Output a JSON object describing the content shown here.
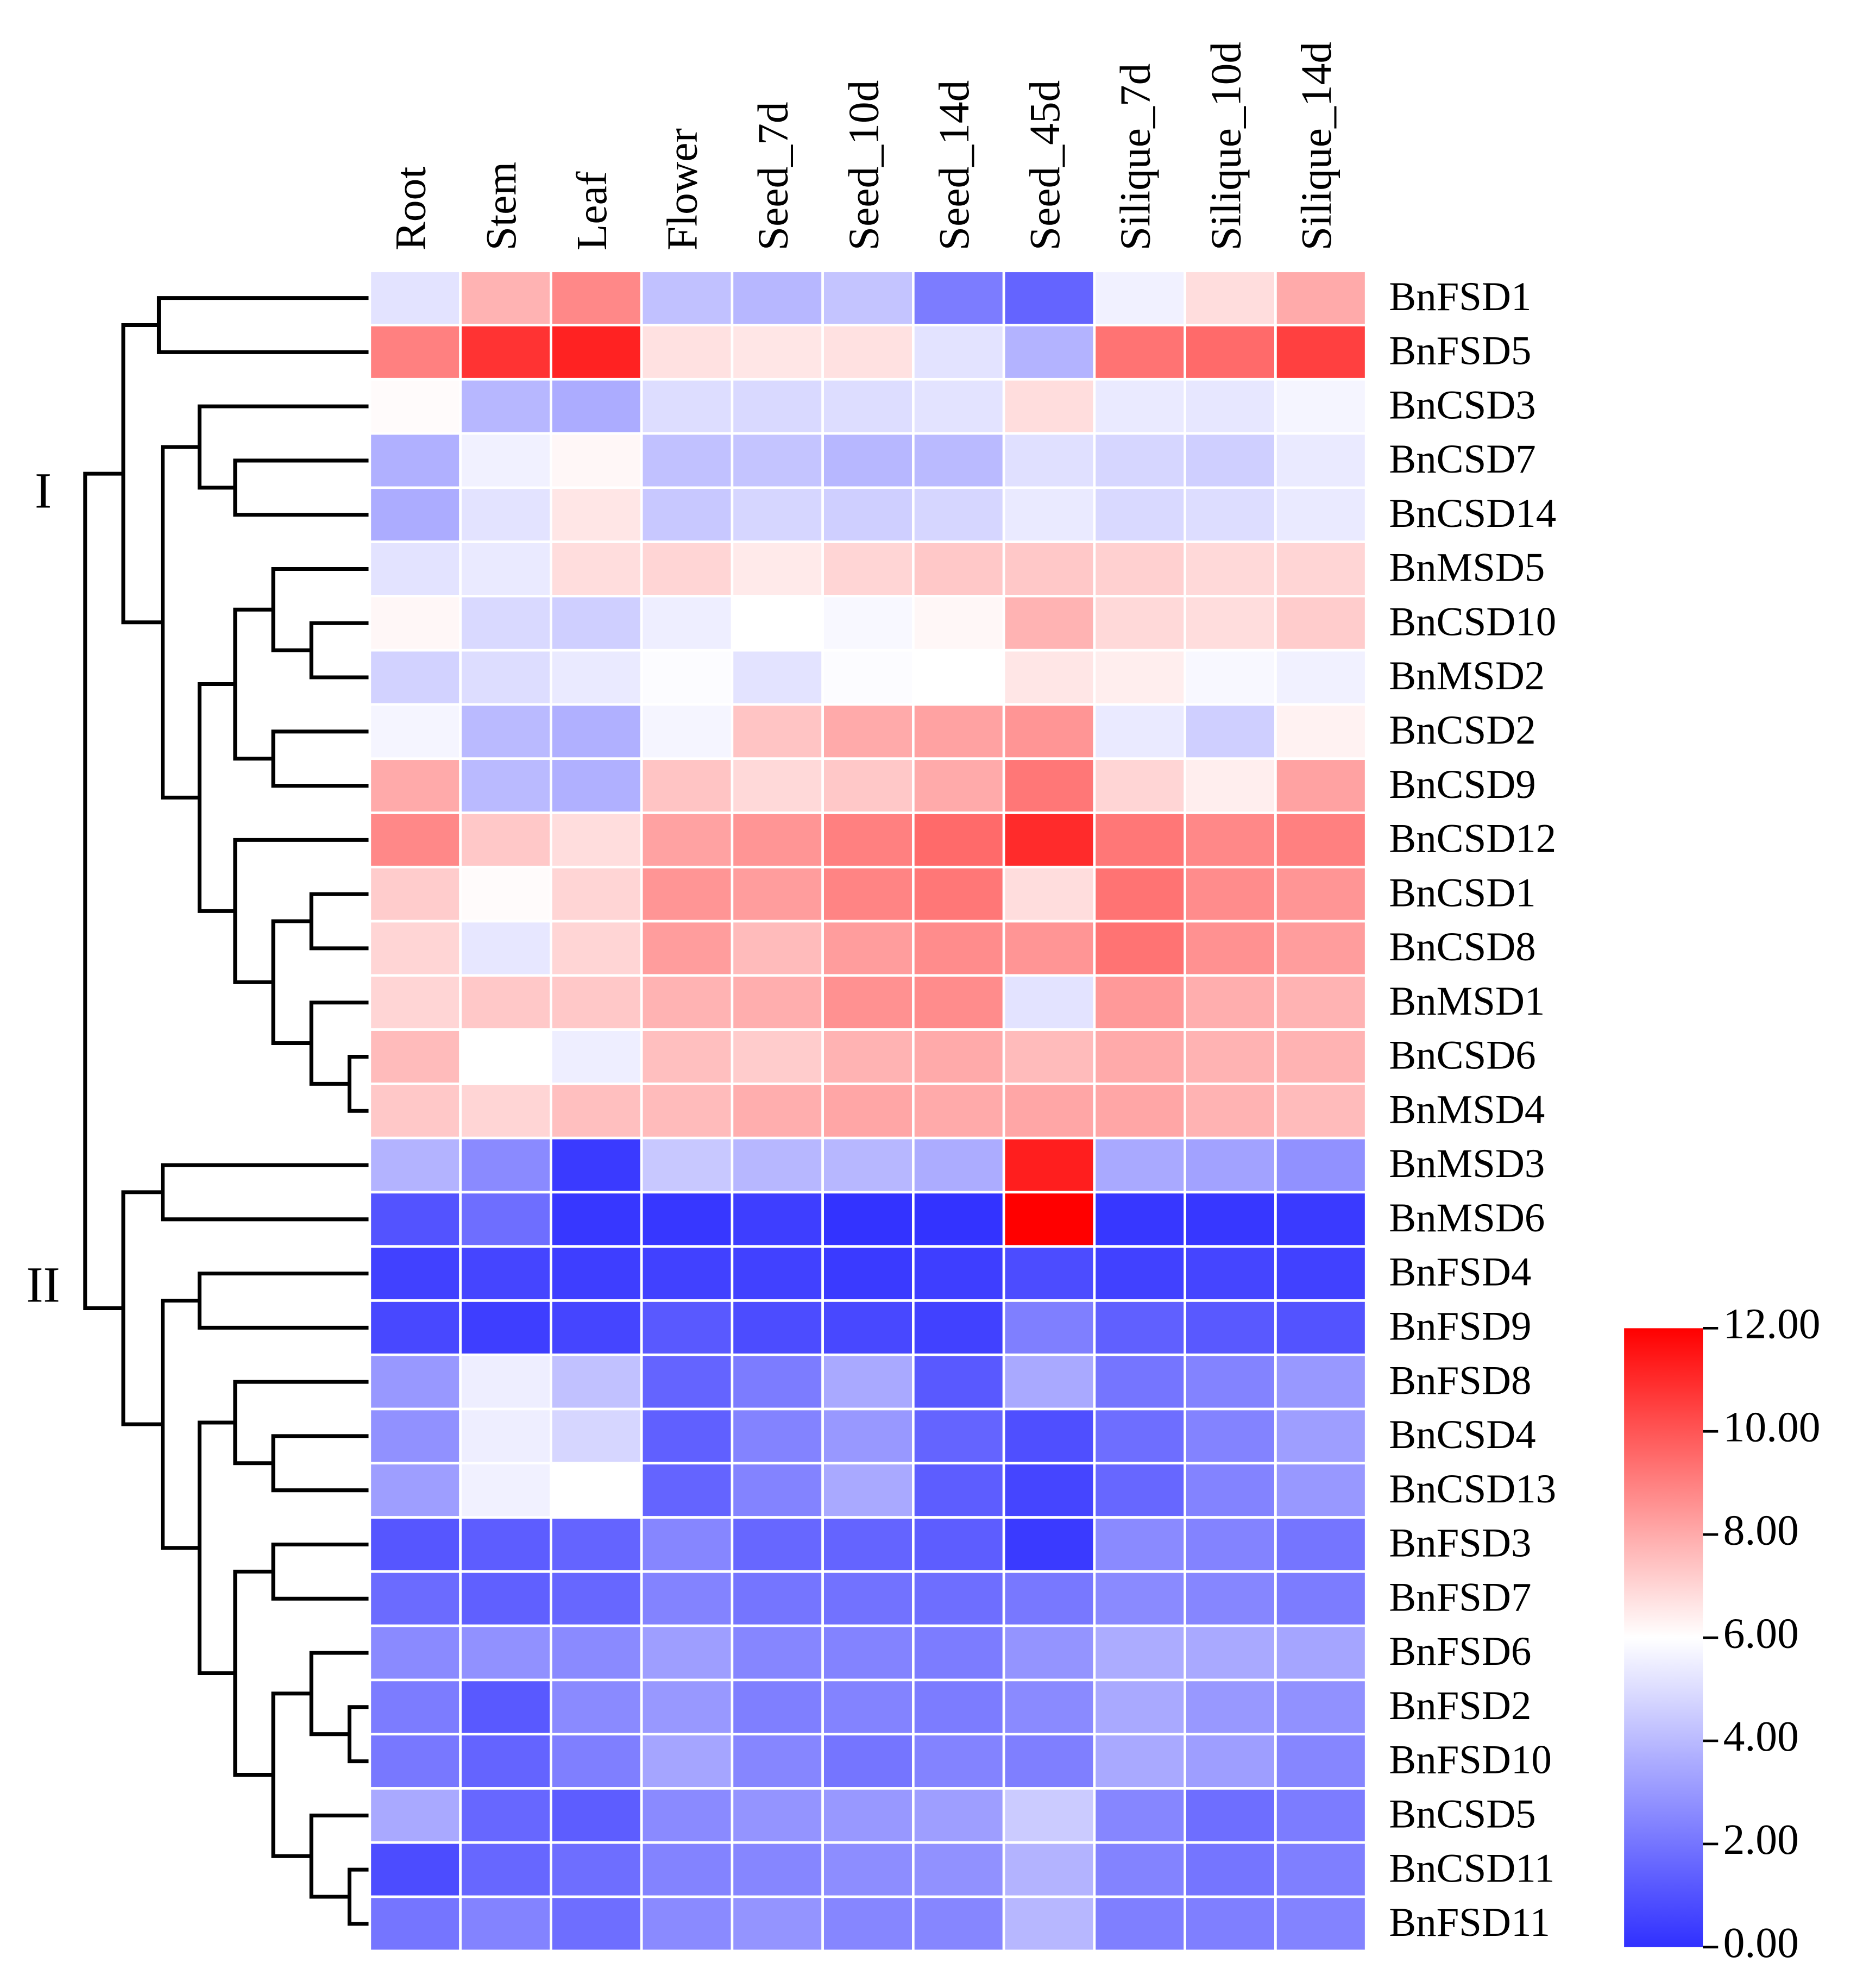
{
  "chart_data": {
    "type": "heatmap",
    "columns": [
      "Root",
      "Stem",
      "Leaf",
      "Flower",
      "Seed_7d",
      "Seed_10d",
      "Seed_14d",
      "Seed_45d",
      "Silique_7d",
      "Silique_10d",
      "Silique_14d"
    ],
    "rows": [
      "BnFSD1",
      "BnFSD5",
      "BnCSD3",
      "BnCSD7",
      "BnCSD14",
      "BnMSD5",
      "BnCSD10",
      "BnMSD2",
      "BnCSD2",
      "BnCSD9",
      "BnCSD12",
      "BnCSD1",
      "BnCSD8",
      "BnMSD1",
      "BnCSD6",
      "BnMSD4",
      "BnMSD3",
      "BnMSD6",
      "BnFSD4",
      "BnFSD9",
      "BnFSD8",
      "BnCSD4",
      "BnCSD13",
      "BnFSD3",
      "BnFSD7",
      "BnFSD6",
      "BnFSD2",
      "BnFSD10",
      "BnCSD5",
      "BnCSD11",
      "BnFSD11"
    ],
    "values": [
      [
        5.2,
        7.8,
        8.8,
        4.2,
        3.9,
        4.3,
        2.2,
        1.5,
        5.6,
        6.8,
        8.0
      ],
      [
        9.0,
        10.8,
        11.2,
        6.7,
        6.6,
        6.7,
        5.2,
        3.8,
        9.3,
        9.5,
        10.5
      ],
      [
        6.1,
        3.9,
        3.6,
        5.0,
        4.9,
        5.0,
        5.2,
        6.8,
        5.4,
        5.3,
        5.7
      ],
      [
        3.7,
        5.6,
        6.2,
        4.2,
        4.3,
        3.9,
        4.0,
        5.1,
        4.8,
        4.6,
        5.4
      ],
      [
        3.6,
        5.2,
        6.6,
        4.4,
        4.8,
        4.6,
        4.8,
        5.4,
        4.9,
        5.0,
        5.4
      ],
      [
        5.2,
        5.4,
        6.8,
        7.0,
        6.5,
        7.0,
        7.3,
        7.3,
        7.1,
        6.9,
        7.0
      ],
      [
        6.2,
        4.9,
        4.6,
        5.5,
        6.0,
        5.8,
        6.2,
        7.8,
        6.9,
        6.8,
        7.2
      ],
      [
        4.7,
        5.0,
        5.4,
        5.9,
        5.2,
        5.9,
        6.0,
        6.6,
        6.4,
        5.8,
        5.6
      ],
      [
        5.7,
        4.0,
        3.7,
        5.7,
        7.4,
        8.0,
        8.2,
        8.5,
        5.4,
        4.6,
        6.3
      ],
      [
        8.0,
        4.0,
        3.7,
        7.4,
        6.9,
        7.3,
        8.0,
        9.2,
        7.0,
        6.4,
        8.2
      ],
      [
        8.8,
        7.3,
        6.8,
        8.2,
        8.5,
        9.0,
        9.5,
        11.0,
        9.2,
        8.8,
        9.0
      ],
      [
        7.2,
        6.1,
        7.0,
        8.5,
        8.3,
        8.9,
        9.2,
        6.8,
        9.3,
        8.7,
        8.5
      ],
      [
        7.0,
        5.3,
        7.0,
        8.3,
        7.6,
        8.3,
        8.7,
        8.5,
        9.3,
        8.6,
        8.3
      ],
      [
        7.0,
        7.3,
        7.3,
        7.8,
        7.9,
        8.6,
        8.7,
        5.2,
        8.4,
        7.9,
        7.8
      ],
      [
        7.6,
        6.0,
        5.5,
        7.5,
        7.2,
        7.8,
        8.0,
        7.6,
        8.0,
        7.8,
        7.8
      ],
      [
        7.3,
        7.0,
        7.5,
        7.6,
        7.9,
        8.1,
        8.0,
        8.1,
        8.1,
        7.8,
        7.6
      ],
      [
        3.8,
        2.6,
        0.3,
        4.4,
        3.9,
        3.9,
        3.6,
        11.3,
        3.5,
        3.3,
        2.8
      ],
      [
        1.0,
        1.8,
        0.2,
        0.2,
        0.4,
        0.1,
        0.1,
        12.0,
        0.2,
        0.2,
        0.3
      ],
      [
        0.5,
        0.6,
        0.4,
        0.5,
        0.5,
        0.3,
        0.4,
        0.8,
        0.5,
        0.6,
        0.5
      ],
      [
        0.7,
        0.4,
        0.6,
        1.2,
        0.8,
        0.7,
        0.5,
        2.3,
        1.4,
        1.2,
        1.0
      ],
      [
        3.0,
        5.5,
        4.2,
        1.5,
        2.2,
        3.5,
        1.2,
        3.5,
        2.0,
        2.4,
        3.0
      ],
      [
        2.8,
        5.5,
        4.8,
        1.4,
        2.4,
        3.0,
        1.5,
        0.9,
        1.8,
        2.4,
        3.2
      ],
      [
        3.2,
        5.6,
        6.0,
        1.5,
        2.4,
        3.5,
        1.3,
        0.6,
        1.6,
        2.4,
        3.0
      ],
      [
        1.1,
        1.3,
        1.5,
        2.5,
        1.6,
        1.5,
        1.3,
        0.3,
        2.6,
        2.4,
        2.0
      ],
      [
        1.7,
        1.4,
        1.6,
        2.4,
        2.0,
        1.9,
        1.8,
        2.1,
        2.6,
        2.5,
        2.2
      ],
      [
        2.6,
        2.8,
        2.6,
        3.2,
        2.5,
        2.4,
        2.2,
        2.9,
        3.6,
        3.5,
        3.4
      ],
      [
        2.2,
        1.2,
        2.6,
        3.0,
        2.3,
        2.4,
        2.2,
        2.6,
        3.5,
        3.0,
        2.8
      ],
      [
        2.1,
        1.5,
        2.3,
        3.4,
        2.5,
        2.0,
        2.4,
        2.3,
        3.5,
        3.2,
        2.5
      ],
      [
        3.5,
        1.6,
        1.3,
        2.6,
        2.9,
        3.0,
        3.2,
        4.5,
        2.5,
        1.8,
        2.2
      ],
      [
        0.8,
        1.6,
        1.8,
        2.4,
        2.5,
        2.7,
        2.8,
        3.8,
        2.4,
        2.0,
        2.3
      ],
      [
        2.0,
        2.4,
        1.8,
        2.6,
        2.9,
        2.5,
        2.5,
        3.9,
        2.3,
        2.3,
        2.4
      ]
    ],
    "zlim": [
      0,
      12
    ],
    "zticks": [
      {
        "value": 0,
        "label": "0.00"
      },
      {
        "value": 2,
        "label": "2.00"
      },
      {
        "value": 4,
        "label": "4.00"
      },
      {
        "value": 6,
        "label": "6.00"
      },
      {
        "value": 8,
        "label": "8.00"
      },
      {
        "value": 10,
        "label": "10.00"
      },
      {
        "value": 12,
        "label": "12.00"
      }
    ],
    "colormap": {
      "low": "#3030ff",
      "mid": "#ffffff",
      "high": "#ff0000"
    },
    "clusters": [
      "I",
      "II"
    ]
  }
}
